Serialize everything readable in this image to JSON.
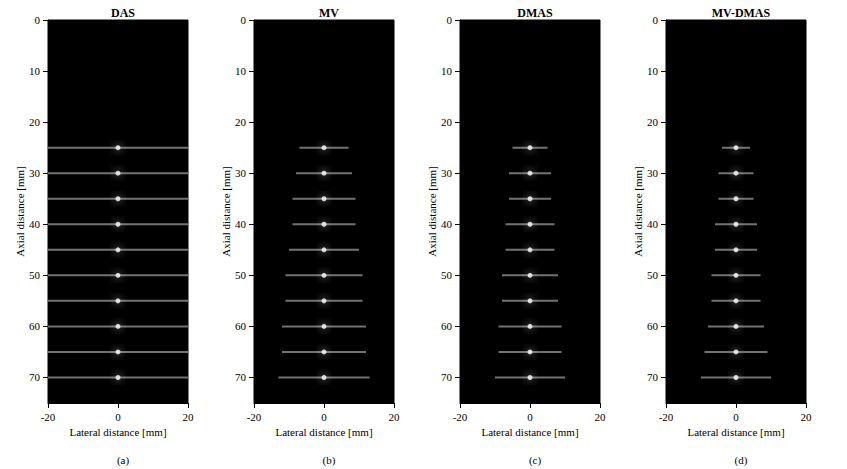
{
  "chart_data": [
    {
      "type": "scatter",
      "title": "DAS",
      "subtitle": "(a)",
      "x_label": "Lateral distance [mm]",
      "y_label": "Axial distance [mm]",
      "xlim": [
        -20,
        20
      ],
      "xticks": [
        -20,
        0,
        20
      ],
      "ylim": [
        0,
        75
      ],
      "yticks": [
        0,
        10,
        20,
        30,
        40,
        50,
        60,
        70
      ],
      "color": "#ffffff",
      "grid": false,
      "x": [
        0,
        0,
        0,
        0,
        0,
        0,
        0,
        0,
        0,
        0
      ],
      "values": [
        25,
        30,
        35,
        40,
        45,
        50,
        55,
        60,
        65,
        70
      ],
      "spread": [
        20,
        20,
        20,
        20,
        20,
        20,
        20,
        20,
        20,
        20
      ]
    },
    {
      "type": "scatter",
      "title": "MV",
      "subtitle": "(b)",
      "x_label": "Lateral distance [mm]",
      "y_label": "Axial distance [mm]",
      "xlim": [
        -20,
        20
      ],
      "xticks": [
        -20,
        0,
        20
      ],
      "ylim": [
        0,
        75
      ],
      "yticks": [
        0,
        10,
        20,
        30,
        40,
        50,
        60,
        70
      ],
      "color": "#ffffff",
      "grid": false,
      "x": [
        0,
        0,
        0,
        0,
        0,
        0,
        0,
        0,
        0,
        0
      ],
      "values": [
        25,
        30,
        35,
        40,
        45,
        50,
        55,
        60,
        65,
        70
      ],
      "spread": [
        7,
        8,
        9,
        9,
        10,
        11,
        11,
        12,
        12,
        13
      ]
    },
    {
      "type": "scatter",
      "title": "DMAS",
      "subtitle": "(c)",
      "x_label": "Lateral distance [mm]",
      "y_label": "Axial distance [mm]",
      "xlim": [
        -20,
        20
      ],
      "xticks": [
        -20,
        0,
        20
      ],
      "ylim": [
        0,
        75
      ],
      "yticks": [
        0,
        10,
        20,
        30,
        40,
        50,
        60,
        70
      ],
      "color": "#ffffff",
      "grid": false,
      "x": [
        0,
        0,
        0,
        0,
        0,
        0,
        0,
        0,
        0,
        0
      ],
      "values": [
        25,
        30,
        35,
        40,
        45,
        50,
        55,
        60,
        65,
        70
      ],
      "spread": [
        5,
        6,
        6,
        7,
        7,
        8,
        8,
        9,
        9,
        10
      ]
    },
    {
      "type": "scatter",
      "title": "MV-DMAS",
      "subtitle": "(d)",
      "x_label": "Lateral distance [mm]",
      "y_label": "Axial distance [mm]",
      "xlim": [
        -20,
        20
      ],
      "xticks": [
        -20,
        0,
        20
      ],
      "ylim": [
        0,
        75
      ],
      "yticks": [
        0,
        10,
        20,
        30,
        40,
        50,
        60,
        70
      ],
      "color": "#ffffff",
      "grid": false,
      "x": [
        0,
        0,
        0,
        0,
        0,
        0,
        0,
        0,
        0,
        0
      ],
      "values": [
        25,
        30,
        35,
        40,
        45,
        50,
        55,
        60,
        65,
        70
      ],
      "spread": [
        4,
        5,
        5,
        6,
        6,
        7,
        7,
        8,
        9,
        10
      ]
    }
  ]
}
